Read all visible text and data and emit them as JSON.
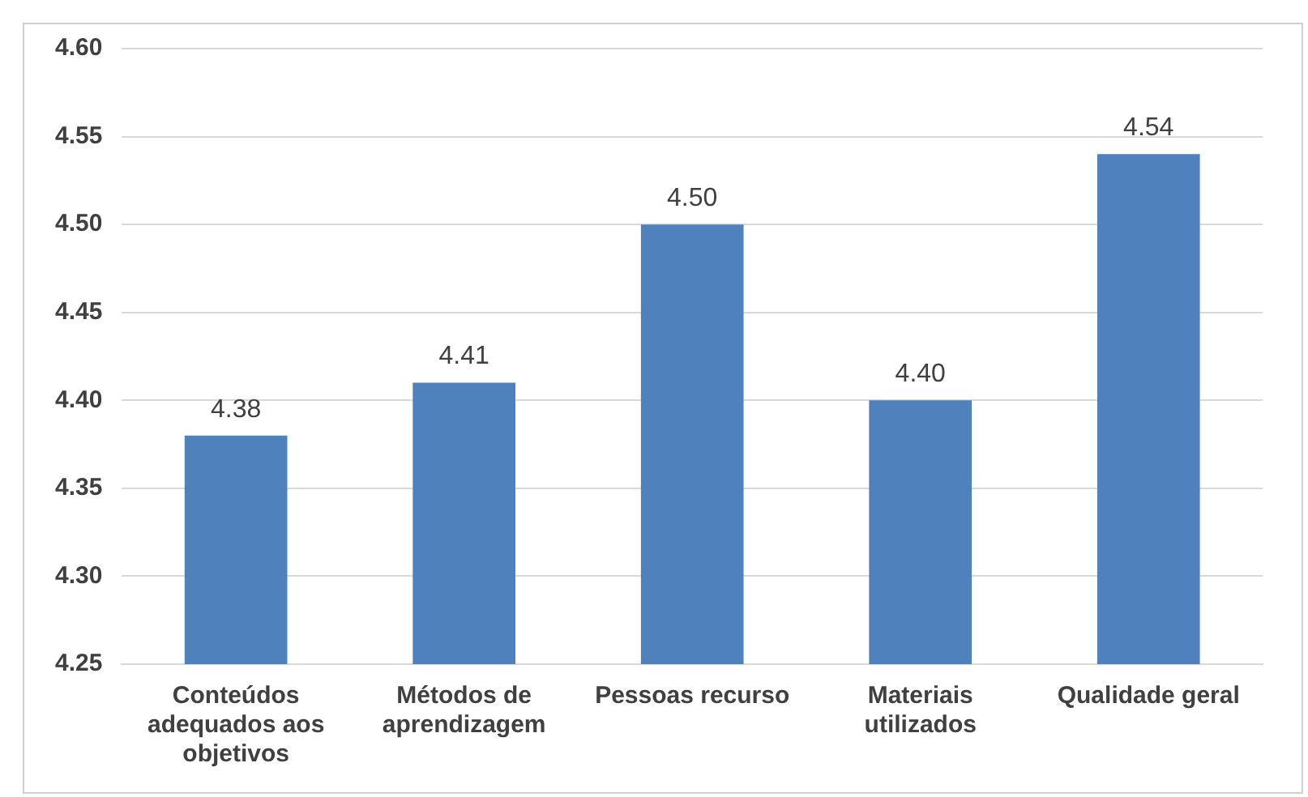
{
  "chart_data": {
    "type": "bar",
    "categories": [
      "Conteúdos adequados aos objetivos",
      "Métodos de aprendizagem",
      "Pessoas recurso",
      "Materiais utilizados",
      "Qualidade geral"
    ],
    "values": [
      4.38,
      4.41,
      4.5,
      4.4,
      4.54
    ],
    "value_labels": [
      "4.38",
      "4.41",
      "4.50",
      "4.40",
      "4.54"
    ],
    "color": "#4f81bd",
    "ylim": [
      4.25,
      4.6
    ],
    "yticks": [
      4.25,
      {
        "value": 4.3,
        "label": "4.30"
      },
      4.35,
      {
        "value": 4.4,
        "label": "4.40"
      },
      4.45,
      {
        "value": 4.5,
        "label": "4.50"
      },
      4.55,
      {
        "value": 4.6,
        "label": "4.60"
      }
    ],
    "grid": "y"
  }
}
